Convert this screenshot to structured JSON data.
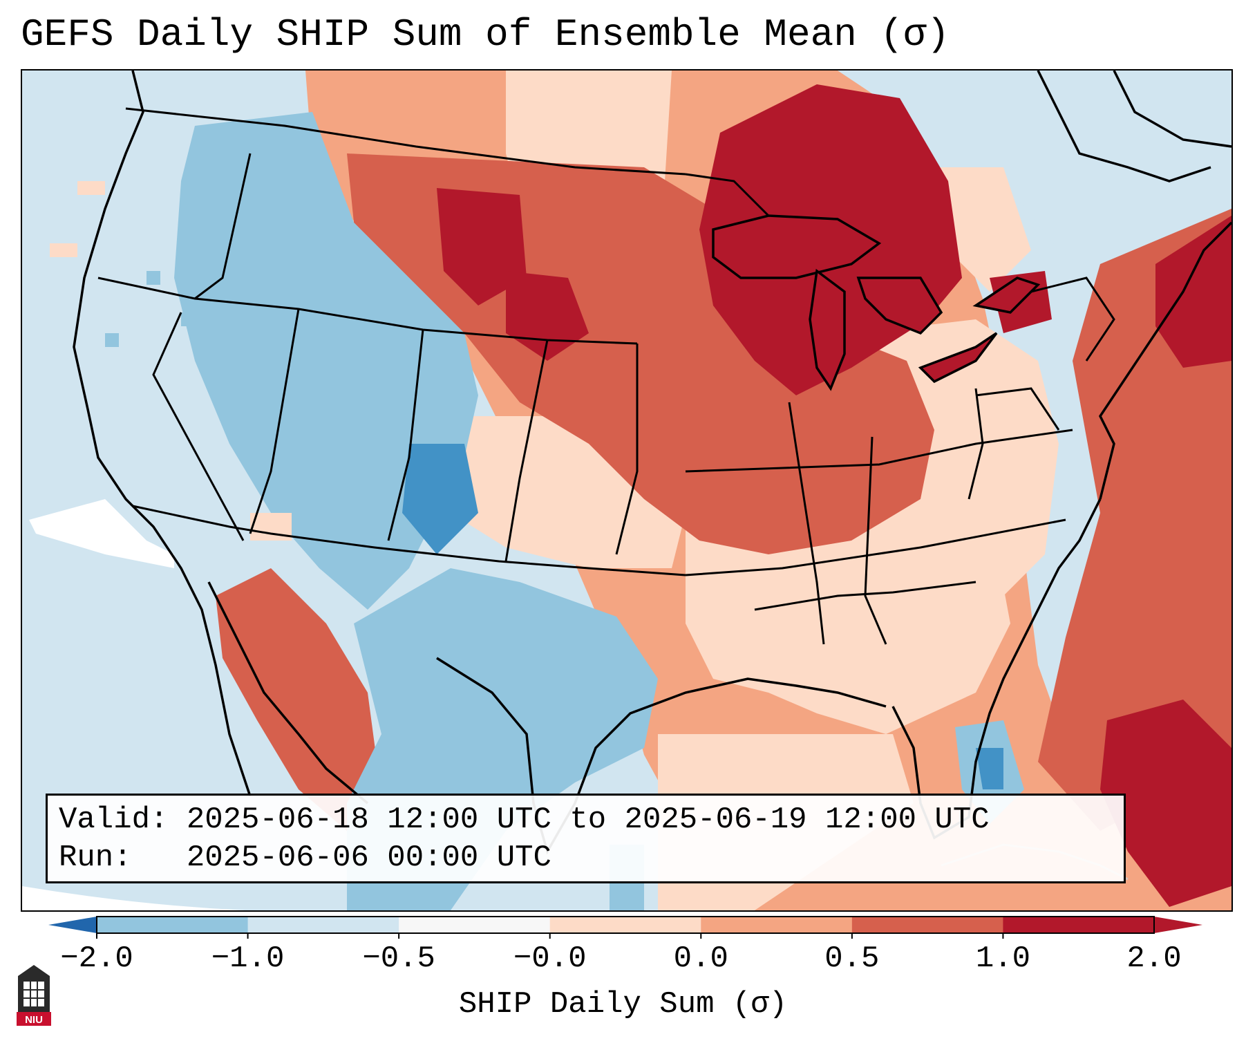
{
  "title": "GEFS Daily SHIP Sum of Ensemble Mean (σ)",
  "info": {
    "valid_label": "Valid:",
    "valid_value": "2025-06-18 12:00 UTC to 2025-06-19 12:00 UTC",
    "run_label": "Run:",
    "run_value": "2025-06-06 00:00 UTC"
  },
  "colorbar": {
    "label": "SHIP Daily Sum (σ)",
    "ticks": [
      "−2.0",
      "−1.0",
      "−0.5",
      "−0.0",
      "0.0",
      "0.5",
      "1.0",
      "2.0"
    ],
    "colors": [
      "#4292c6",
      "#92c5de",
      "#d1e5f0",
      "#f7f7f7",
      "#fddbc7",
      "#f4a582",
      "#d6604d",
      "#b2182b"
    ],
    "extend_low_color": "#2166ac",
    "extend_high_color": "#b2182b"
  },
  "logo_text": "NIU",
  "logo_color": "#c8102e"
}
